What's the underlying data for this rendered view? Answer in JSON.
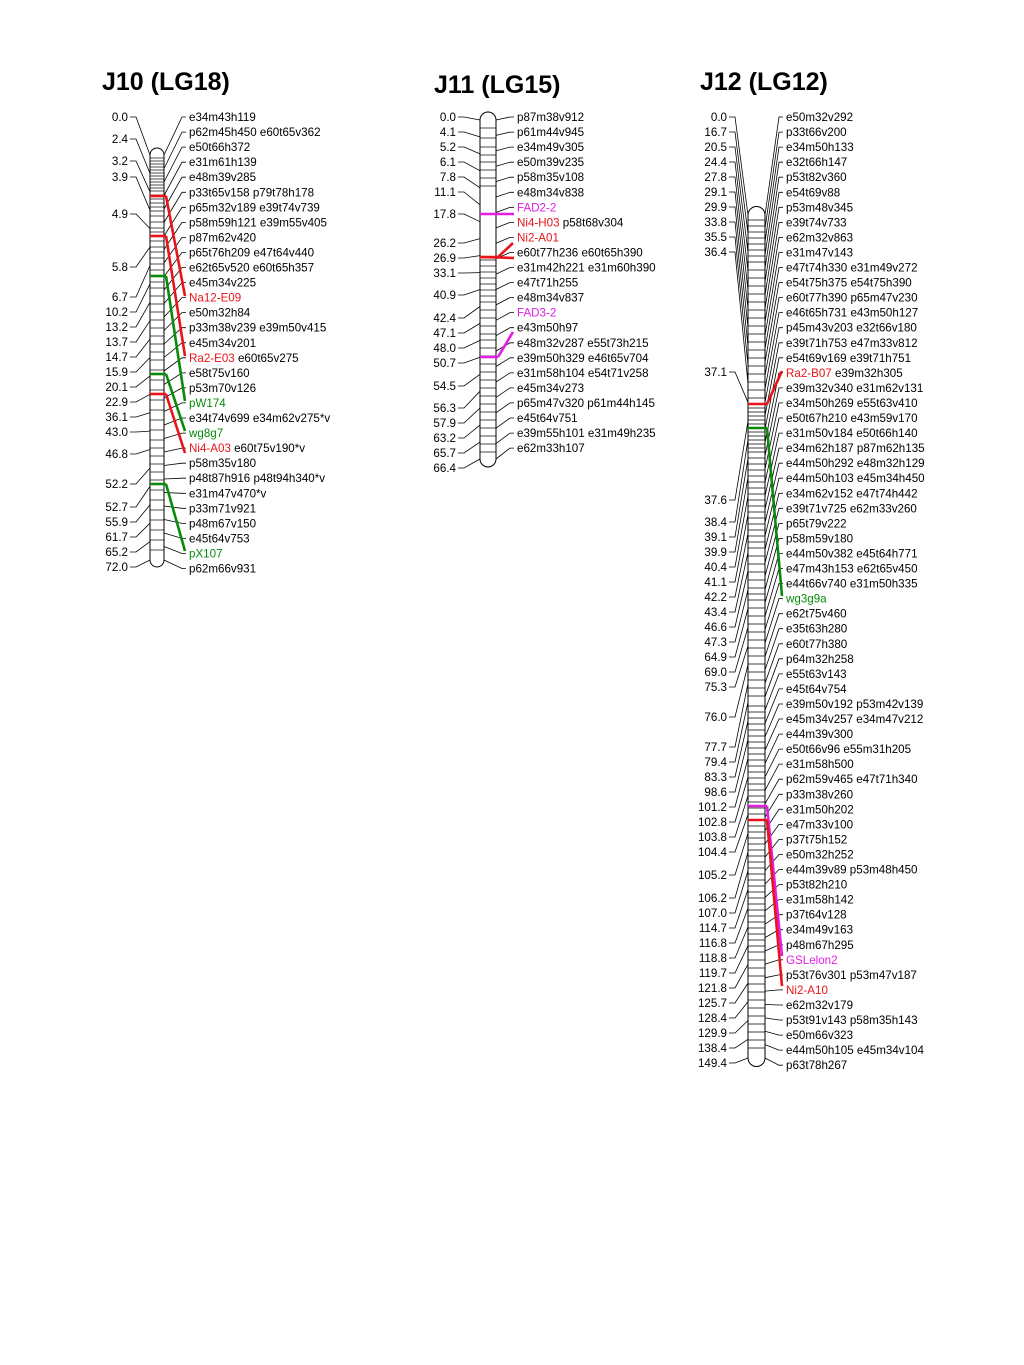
{
  "colors": {
    "black": "#000000",
    "red": "#e8141b",
    "green": "#0a8a0a",
    "magenta": "#e31ee3"
  },
  "linkage_groups": [
    {
      "title": "J10 (LG18)",
      "positions": [
        "0.0",
        "2.4",
        "3.2",
        "3.9",
        "4.9",
        "5.8",
        "6.7",
        "10.2",
        "13.2",
        "13.7",
        "14.7",
        "15.9",
        "20.1",
        "22.9",
        "36.1",
        "43.0",
        "46.8",
        "52.2",
        "52.7",
        "55.9",
        "61.7",
        "65.2",
        "72.0"
      ],
      "markers": [
        [
          {
            "t": "e34m43h119",
            "c": "black"
          }
        ],
        [
          {
            "t": "p62m45h450 e60t65v362",
            "c": "black"
          }
        ],
        [
          {
            "t": "e50t66h372",
            "c": "black"
          }
        ],
        [
          {
            "t": "e31m61h139",
            "c": "black"
          }
        ],
        [
          {
            "t": "e48m39v285",
            "c": "black"
          }
        ],
        [
          {
            "t": "p33t65v158 p79t78h178",
            "c": "black"
          }
        ],
        [
          {
            "t": "p65m32v189 e39t74v739",
            "c": "black"
          }
        ],
        [
          {
            "t": "p58m59h121 e39m55v405",
            "c": "black"
          }
        ],
        [
          {
            "t": "p87m62v420",
            "c": "black"
          }
        ],
        [
          {
            "t": "p65t76h209 e47t64v440",
            "c": "black"
          }
        ],
        [
          {
            "t": "e62t65v520 e60t65h357",
            "c": "black"
          }
        ],
        [
          {
            "t": "e45m34v225",
            "c": "black"
          }
        ],
        [
          {
            "t": "Na12-E09",
            "c": "red"
          }
        ],
        [
          {
            "t": "e50m32h84",
            "c": "black"
          }
        ],
        [
          {
            "t": "p33m38v239 e39m50v415",
            "c": "black"
          }
        ],
        [
          {
            "t": "e45m34v201",
            "c": "black"
          }
        ],
        [
          {
            "t": "Ra2-E03",
            "c": "red"
          },
          {
            "t": " e60t65v275",
            "c": "black"
          }
        ],
        [
          {
            "t": "e58t75v160",
            "c": "black"
          }
        ],
        [
          {
            "t": "p53m70v126",
            "c": "black"
          }
        ],
        [
          {
            "t": "pW174",
            "c": "green"
          }
        ],
        [
          {
            "t": "e34t74v699 e34m62v275*v",
            "c": "black"
          }
        ],
        [
          {
            "t": "wg8g7",
            "c": "green"
          }
        ],
        [
          {
            "t": "Ni4-A03",
            "c": "red"
          },
          {
            "t": " e60t75v190*v",
            "c": "black"
          }
        ],
        [
          {
            "t": "p58m35v180",
            "c": "black"
          }
        ],
        [
          {
            "t": "p48t87h916 p48t94h340*v",
            "c": "black"
          }
        ],
        [
          {
            "t": "e31m47v470*v",
            "c": "black"
          }
        ],
        [
          {
            "t": "p33m71v921",
            "c": "black"
          }
        ],
        [
          {
            "t": "p48m67v150",
            "c": "black"
          }
        ],
        [
          {
            "t": "e45t64v753",
            "c": "black"
          }
        ],
        [
          {
            "t": "pX107",
            "c": "green"
          }
        ],
        [
          {
            "t": "p62m66v931",
            "c": "black"
          }
        ]
      ]
    },
    {
      "title": "J11 (LG15)",
      "positions": [
        "0.0",
        "4.1",
        "5.2",
        "6.1",
        "7.8",
        "11.1",
        "17.8",
        "26.2",
        "26.9",
        "33.1",
        "40.9",
        "42.4",
        "47.1",
        "48.0",
        "50.7",
        "54.5",
        "56.3",
        "57.9",
        "63.2",
        "65.7",
        "66.4"
      ],
      "markers": [
        [
          {
            "t": "p87m38v912",
            "c": "black"
          }
        ],
        [
          {
            "t": "p61m44v945",
            "c": "black"
          }
        ],
        [
          {
            "t": "e34m49v305",
            "c": "black"
          }
        ],
        [
          {
            "t": "e50m39v235",
            "c": "black"
          }
        ],
        [
          {
            "t": "p58m35v108",
            "c": "black"
          }
        ],
        [
          {
            "t": "e48m34v838",
            "c": "black"
          }
        ],
        [
          {
            "t": "FAD2-2",
            "c": "magenta"
          }
        ],
        [
          {
            "t": "Ni4-H03",
            "c": "red"
          },
          {
            "t": " p58t68v304",
            "c": "black"
          }
        ],
        [
          {
            "t": "Ni2-A01",
            "c": "red"
          }
        ],
        [
          {
            "t": "e60t77h236 e60t65h390",
            "c": "black"
          }
        ],
        [
          {
            "t": "e31m42h221 e31m60h390",
            "c": "black"
          }
        ],
        [
          {
            "t": "e47t71h255",
            "c": "black"
          }
        ],
        [
          {
            "t": "e48m34v837",
            "c": "black"
          }
        ],
        [
          {
            "t": "FAD3-2",
            "c": "magenta"
          }
        ],
        [
          {
            "t": "e43m50h97",
            "c": "black"
          }
        ],
        [
          {
            "t": "e48m32v287 e55t73h215",
            "c": "black"
          }
        ],
        [
          {
            "t": "e39m50h329 e46t65v704",
            "c": "black"
          }
        ],
        [
          {
            "t": "e31m58h104 e54t71v258",
            "c": "black"
          }
        ],
        [
          {
            "t": "e45m34v273",
            "c": "black"
          }
        ],
        [
          {
            "t": "p65m47v320 p61m44h145",
            "c": "black"
          }
        ],
        [
          {
            "t": "e45t64v751",
            "c": "black"
          }
        ],
        [
          {
            "t": "e39m55h101 e31m49h235",
            "c": "black"
          }
        ],
        [
          {
            "t": "e62m33h107",
            "c": "black"
          }
        ]
      ]
    },
    {
      "title": "J12 (LG12)",
      "positions": [
        "0.0",
        "16.7",
        "20.5",
        "24.4",
        "27.8",
        "29.1",
        "29.9",
        "33.8",
        "35.5",
        "36.4",
        "37.1",
        "37.6",
        "38.4",
        "39.1",
        "39.9",
        "40.4",
        "41.1",
        "42.2",
        "43.4",
        "46.6",
        "47.3",
        "64.9",
        "69.0",
        "75.3",
        "76.0",
        "77.7",
        "79.4",
        "83.3",
        "98.6",
        "101.2",
        "102.8",
        "103.8",
        "104.4",
        "105.2",
        "106.2",
        "107.0",
        "114.7",
        "116.8",
        "118.8",
        "119.7",
        "121.8",
        "125.7",
        "128.4",
        "129.9",
        "138.4",
        "149.4"
      ],
      "markers": [
        [
          {
            "t": "e50m32v292",
            "c": "black"
          }
        ],
        [
          {
            "t": "p33t66v200",
            "c": "black"
          }
        ],
        [
          {
            "t": "e34m50h133",
            "c": "black"
          }
        ],
        [
          {
            "t": "e32t66h147",
            "c": "black"
          }
        ],
        [
          {
            "t": "p53t82v360",
            "c": "black"
          }
        ],
        [
          {
            "t": "e54t69v88",
            "c": "black"
          }
        ],
        [
          {
            "t": "p53m48v345",
            "c": "black"
          }
        ],
        [
          {
            "t": "e39t74v733",
            "c": "black"
          }
        ],
        [
          {
            "t": "e62m32v863",
            "c": "black"
          }
        ],
        [
          {
            "t": "e31m47v143",
            "c": "black"
          }
        ],
        [
          {
            "t": "e47t74h330 e31m49v272",
            "c": "black"
          }
        ],
        [
          {
            "t": "e54t75h375 e54t75h390",
            "c": "black"
          }
        ],
        [
          {
            "t": "e60t77h390 p65m47v230",
            "c": "black"
          }
        ],
        [
          {
            "t": "e46t65h731 e43m50h127",
            "c": "black"
          }
        ],
        [
          {
            "t": "p45m43v203 e32t66v180",
            "c": "black"
          }
        ],
        [
          {
            "t": "e39t71h753 e47m33v812",
            "c": "black"
          }
        ],
        [
          {
            "t": "e54t69v169 e39t71h751",
            "c": "black"
          }
        ],
        [
          {
            "t": "Ra2-B07",
            "c": "red"
          },
          {
            "t": " e39m32h305",
            "c": "black"
          }
        ],
        [
          {
            "t": "e39m32v340 e31m62v131",
            "c": "black"
          }
        ],
        [
          {
            "t": "e34m50h269 e55t63v410",
            "c": "black"
          }
        ],
        [
          {
            "t": "e50t67h210 e43m59v170",
            "c": "black"
          }
        ],
        [
          {
            "t": "e31m50v184 e50t66h140",
            "c": "black"
          }
        ],
        [
          {
            "t": "e34m62h187 p87m62h135",
            "c": "black"
          }
        ],
        [
          {
            "t": "e44m50h292 e48m32h129",
            "c": "black"
          }
        ],
        [
          {
            "t": "e44m50h103 e45m34h450",
            "c": "black"
          }
        ],
        [
          {
            "t": "e34m62v152 e47t74h442",
            "c": "black"
          }
        ],
        [
          {
            "t": "e39t71v725 e62m33v260",
            "c": "black"
          }
        ],
        [
          {
            "t": "p65t79v222",
            "c": "black"
          }
        ],
        [
          {
            "t": "p58m59v180",
            "c": "black"
          }
        ],
        [
          {
            "t": "e44m50v382 e45t64h771",
            "c": "black"
          }
        ],
        [
          {
            "t": "e47m43h153 e62t65v450",
            "c": "black"
          }
        ],
        [
          {
            "t": "e44t66v740 e31m50h335",
            "c": "black"
          }
        ],
        [
          {
            "t": "wg3g9a",
            "c": "green"
          }
        ],
        [
          {
            "t": "e62t75v460",
            "c": "black"
          }
        ],
        [
          {
            "t": "e35t63h280",
            "c": "black"
          }
        ],
        [
          {
            "t": "e60t77h380",
            "c": "black"
          }
        ],
        [
          {
            "t": "p64m32h258",
            "c": "black"
          }
        ],
        [
          {
            "t": "e55t63v143",
            "c": "black"
          }
        ],
        [
          {
            "t": "e45t64v754",
            "c": "black"
          }
        ],
        [
          {
            "t": "e39m50v192 p53m42v139",
            "c": "black"
          }
        ],
        [
          {
            "t": "e45m34v257 e34m47v212",
            "c": "black"
          }
        ],
        [
          {
            "t": "e44m39v300",
            "c": "black"
          }
        ],
        [
          {
            "t": "e50t66v96 e55m31h205",
            "c": "black"
          }
        ],
        [
          {
            "t": "e31m58h500",
            "c": "black"
          }
        ],
        [
          {
            "t": "p62m59v465 e47t71h340",
            "c": "black"
          }
        ],
        [
          {
            "t": "p33m38v260",
            "c": "black"
          }
        ],
        [
          {
            "t": "e31m50h202",
            "c": "black"
          }
        ],
        [
          {
            "t": "e47m33v100",
            "c": "black"
          }
        ],
        [
          {
            "t": "p37t75h152",
            "c": "black"
          }
        ],
        [
          {
            "t": "e50m32h252",
            "c": "black"
          }
        ],
        [
          {
            "t": "e44m39v89 p53m48h450",
            "c": "black"
          }
        ],
        [
          {
            "t": "p53t82h210",
            "c": "black"
          }
        ],
        [
          {
            "t": "e31m58h142",
            "c": "black"
          }
        ],
        [
          {
            "t": "p37t64v128",
            "c": "black"
          }
        ],
        [
          {
            "t": "e34m49v163",
            "c": "black"
          }
        ],
        [
          {
            "t": "p48m67h295",
            "c": "black"
          }
        ],
        [
          {
            "t": "GSLelon2",
            "c": "magenta"
          }
        ],
        [
          {
            "t": "p53t76v301 p53m47v187",
            "c": "black"
          }
        ],
        [
          {
            "t": "Ni2-A10",
            "c": "red"
          }
        ],
        [
          {
            "t": "e62m32v179",
            "c": "black"
          }
        ],
        [
          {
            "t": "p53t91v143 p58m35h143",
            "c": "black"
          }
        ],
        [
          {
            "t": "e50m66v323",
            "c": "black"
          }
        ],
        [
          {
            "t": "e44m50h105 e45m34v104",
            "c": "black"
          }
        ],
        [
          {
            "t": "p63t78h267",
            "c": "black"
          }
        ]
      ]
    }
  ]
}
